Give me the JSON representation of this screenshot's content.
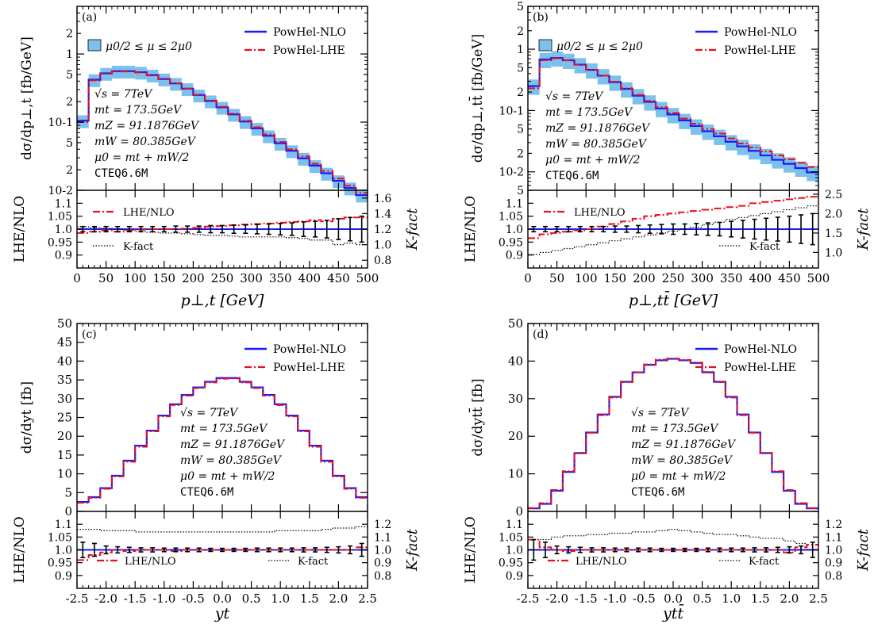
{
  "colors": {
    "nlo": "#1a1aff",
    "lhe": "#e8101a",
    "band": "#7cc0ec",
    "kfact": "#000000"
  },
  "info_text": [
    "√s = 7TeV",
    "mt = 173.5GeV",
    "mZ = 91.1876GeV",
    "mW = 80.385GeV",
    "μ0 = mt + mW/2",
    "CTEQ6.6M"
  ],
  "chart_data": [
    {
      "type": "line",
      "panel_label": "(a)",
      "xlabel": "p⊥,t [GeV]",
      "ylabel": "dσ/dp⊥,t [fb/GeV]",
      "log_y": true,
      "xlim": [
        0,
        500
      ],
      "ylim": [
        0.01,
        5
      ],
      "x_ticks": [
        "0",
        "50",
        "100",
        "150",
        "200",
        "250",
        "300",
        "350",
        "400",
        "450",
        "500"
      ],
      "y_ticks": [
        "10-2",
        "2",
        "5",
        "10-1",
        "2",
        "5",
        "1",
        "2"
      ],
      "legend": {
        "band": "μ0/2 ≤ μ ≤ 2μ0",
        "nlo": "PowHel-NLO",
        "lhe": "PowHel-LHE"
      },
      "bin_edges": [
        0,
        20,
        40,
        60,
        80,
        100,
        120,
        140,
        160,
        180,
        200,
        220,
        240,
        260,
        280,
        300,
        320,
        340,
        360,
        380,
        400,
        420,
        440,
        460,
        480,
        500
      ],
      "series": [
        {
          "name": "PowHel-NLO",
          "values": [
            0.105,
            0.42,
            0.52,
            0.56,
            0.56,
            0.54,
            0.49,
            0.43,
            0.37,
            0.31,
            0.25,
            0.205,
            0.165,
            0.13,
            0.102,
            0.081,
            0.063,
            0.049,
            0.038,
            0.0295,
            0.023,
            0.0178,
            0.0138,
            0.0108,
            0.0085
          ]
        },
        {
          "name": "PowHel-LHE",
          "values": [
            0.1,
            0.41,
            0.515,
            0.555,
            0.555,
            0.535,
            0.485,
            0.425,
            0.368,
            0.31,
            0.252,
            0.208,
            0.168,
            0.133,
            0.105,
            0.084,
            0.066,
            0.051,
            0.04,
            0.0315,
            0.0245,
            0.0192,
            0.0149,
            0.0117,
            0.0092
          ]
        }
      ],
      "band_rel": [
        0.78,
        1.2
      ],
      "ratio": {
        "ylabel": "LHE/NLO",
        "y2label": "K-fact",
        "ylim": [
          0.85,
          1.15
        ],
        "y_ticks": [
          "0.9",
          "0.95",
          "1.0",
          "1.05",
          "1.1"
        ],
        "y2lim": [
          0.7,
          1.7
        ],
        "y2_ticks": [
          "0.8",
          "1.0",
          "1.2",
          "1.4",
          "1.6"
        ],
        "legend": {
          "lhe": "LHE/NLO",
          "kfact": "K-fact"
        },
        "lhe_nlo": [
          0.985,
          0.99,
          0.995,
          0.99,
          0.995,
          0.998,
          1.0,
          1.0,
          1.0,
          1.002,
          1.005,
          1.01,
          1.012,
          1.015,
          1.018,
          1.02,
          1.022,
          1.025,
          1.028,
          1.03,
          1.035,
          1.03,
          1.04,
          1.045,
          1.045
        ],
        "errors": [
          0.01,
          0.01,
          0.01,
          0.01,
          0.01,
          0.01,
          0.01,
          0.01,
          0.012,
          0.012,
          0.012,
          0.014,
          0.014,
          0.016,
          0.016,
          0.018,
          0.02,
          0.022,
          0.024,
          0.028,
          0.03,
          0.034,
          0.04,
          0.045,
          0.05
        ],
        "k_fact": [
          1.23,
          1.22,
          1.21,
          1.2,
          1.19,
          1.17,
          1.16,
          1.15,
          1.15,
          1.14,
          1.13,
          1.12,
          1.12,
          1.11,
          1.1,
          1.1,
          1.1,
          1.1,
          1.09,
          1.08,
          1.06,
          1.06,
          1.0,
          1.02,
          1.0
        ]
      }
    },
    {
      "type": "line",
      "panel_label": "(b)",
      "xlabel": "p⊥,tt̄ [GeV]",
      "ylabel": "dσ/dp⊥,tt̄ [fb/GeV]",
      "log_y": true,
      "xlim": [
        0,
        500
      ],
      "ylim": [
        0.005,
        5
      ],
      "x_ticks": [
        "0",
        "50",
        "100",
        "150",
        "200",
        "250",
        "300",
        "350",
        "400",
        "450",
        "500"
      ],
      "y_ticks": [
        "5",
        "10-2",
        "2",
        "5",
        "10-1",
        "2",
        "5",
        "1",
        "2",
        "5"
      ],
      "legend": {
        "band": "μ0/2 ≤ μ ≤ 2μ0",
        "nlo": "PowHel-NLO",
        "lhe": "PowHel-LHE"
      },
      "bin_edges": [
        0,
        20,
        40,
        60,
        80,
        100,
        120,
        140,
        160,
        180,
        200,
        220,
        240,
        260,
        280,
        300,
        320,
        340,
        360,
        380,
        400,
        420,
        440,
        460,
        480,
        500
      ],
      "series": [
        {
          "name": "PowHel-NLO",
          "values": [
            0.25,
            0.68,
            0.72,
            0.66,
            0.56,
            0.46,
            0.37,
            0.29,
            0.225,
            0.175,
            0.138,
            0.108,
            0.086,
            0.069,
            0.056,
            0.046,
            0.038,
            0.031,
            0.026,
            0.022,
            0.0185,
            0.0157,
            0.0135,
            0.0115,
            0.0098
          ]
        },
        {
          "name": "PowHel-LHE",
          "values": [
            0.23,
            0.66,
            0.71,
            0.66,
            0.56,
            0.46,
            0.37,
            0.295,
            0.23,
            0.18,
            0.143,
            0.113,
            0.091,
            0.074,
            0.061,
            0.05,
            0.042,
            0.035,
            0.029,
            0.025,
            0.0215,
            0.0185,
            0.016,
            0.014,
            0.012
          ]
        }
      ],
      "band_rel": [
        0.72,
        1.28
      ],
      "ratio": {
        "ylabel": "LHE/NLO",
        "y2label": "K-fact",
        "ylim": [
          0.85,
          1.15
        ],
        "y_ticks": [
          "0.9",
          "0.95",
          "1.0",
          "1.05",
          "1.1"
        ],
        "y2lim": [
          0.6,
          2.6
        ],
        "y2_ticks": [
          "1.0",
          "1.5",
          "2.0",
          "2.5"
        ],
        "legend": {
          "lhe": "LHE/NLO",
          "kfact": "K-fact"
        },
        "lhe_nlo": [
          0.965,
          0.98,
          0.985,
          0.99,
          0.995,
          1.0,
          1.01,
          1.02,
          1.03,
          1.04,
          1.05,
          1.055,
          1.06,
          1.065,
          1.07,
          1.075,
          1.08,
          1.085,
          1.09,
          1.1,
          1.105,
          1.11,
          1.115,
          1.12,
          1.125
        ],
        "errors": [
          0.01,
          0.01,
          0.01,
          0.01,
          0.01,
          0.01,
          0.01,
          0.012,
          0.012,
          0.014,
          0.016,
          0.018,
          0.02,
          0.02,
          0.022,
          0.024,
          0.026,
          0.03,
          0.034,
          0.038,
          0.042,
          0.046,
          0.05,
          0.055,
          0.06
        ],
        "k_fact": [
          0.95,
          1.0,
          1.05,
          1.1,
          1.15,
          1.2,
          1.25,
          1.3,
          1.35,
          1.4,
          1.45,
          1.5,
          1.55,
          1.6,
          1.65,
          1.72,
          1.78,
          1.85,
          1.9,
          1.95,
          2.0,
          2.05,
          2.1,
          2.15,
          2.2
        ]
      }
    },
    {
      "type": "line",
      "panel_label": "(c)",
      "xlabel": "yt",
      "ylabel": "dσ/dyt [fb]",
      "log_y": false,
      "xlim": [
        -2.5,
        2.5
      ],
      "ylim": [
        0,
        50
      ],
      "x_ticks": [
        "-2.5",
        "-2.0",
        "-1.5",
        "-1.0",
        "-0.5",
        "0.0",
        "0.5",
        "1.0",
        "1.5",
        "2.0",
        "2.5"
      ],
      "y_ticks": [
        "0",
        "5",
        "10",
        "15",
        "20",
        "25",
        "30",
        "35",
        "40",
        "45",
        "50"
      ],
      "legend": {
        "nlo": "PowHel-NLO",
        "lhe": "PowHel-LHE"
      },
      "bin_edges": [
        -2.5,
        -2.3,
        -2.1,
        -1.9,
        -1.7,
        -1.5,
        -1.3,
        -1.1,
        -0.9,
        -0.7,
        -0.5,
        -0.3,
        -0.1,
        0.1,
        0.3,
        0.5,
        0.7,
        0.9,
        1.1,
        1.3,
        1.5,
        1.7,
        1.9,
        2.1,
        2.3,
        2.5
      ],
      "series": [
        {
          "name": "PowHel-NLO",
          "values": [
            2.5,
            3.8,
            6.2,
            9.5,
            13.5,
            17.5,
            21.5,
            25.5,
            28.5,
            31.0,
            33.0,
            34.5,
            35.5,
            35.5,
            34.5,
            33.0,
            31.0,
            28.5,
            25.5,
            21.5,
            17.5,
            13.5,
            9.5,
            6.2,
            3.8
          ]
        },
        {
          "name": "PowHel-LHE",
          "values": [
            2.3,
            3.6,
            6.0,
            9.3,
            13.2,
            17.2,
            21.3,
            25.3,
            28.3,
            30.8,
            32.8,
            34.3,
            35.3,
            35.4,
            34.3,
            32.8,
            30.8,
            28.3,
            25.3,
            21.3,
            17.2,
            13.2,
            9.3,
            6.0,
            3.6
          ]
        }
      ],
      "ratio": {
        "ylabel": "LHE/NLO",
        "y2label": "K-fact",
        "ylim": [
          0.85,
          1.15
        ],
        "y_ticks": [
          "0.9",
          "0.95",
          "1.0",
          "1.05",
          "1.1"
        ],
        "y2lim": [
          0.7,
          1.3
        ],
        "y2_ticks": [
          "0.8",
          "0.9",
          "1.0",
          "1.1",
          "1.2"
        ],
        "legend": {
          "lhe": "LHE/NLO",
          "kfact": "K-fact"
        },
        "lhe_nlo": [
          0.96,
          0.98,
          0.99,
          1.0,
          0.995,
          1.0,
          1.0,
          1.0,
          0.995,
          1.0,
          1.0,
          1.0,
          1.0,
          1.0,
          1.0,
          1.0,
          1.0,
          1.0,
          1.0,
          1.0,
          1.0,
          1.0,
          1.0,
          1.0,
          1.01
        ],
        "errors": [
          0.03,
          0.025,
          0.015,
          0.012,
          0.01,
          0.008,
          0.008,
          0.007,
          0.007,
          0.007,
          0.007,
          0.006,
          0.006,
          0.006,
          0.006,
          0.007,
          0.007,
          0.007,
          0.007,
          0.008,
          0.008,
          0.01,
          0.012,
          0.015,
          0.025
        ],
        "k_fact": [
          1.16,
          1.16,
          1.15,
          1.15,
          1.15,
          1.14,
          1.14,
          1.14,
          1.14,
          1.14,
          1.14,
          1.14,
          1.14,
          1.14,
          1.14,
          1.14,
          1.14,
          1.15,
          1.15,
          1.15,
          1.15,
          1.16,
          1.17,
          1.17,
          1.18
        ]
      }
    },
    {
      "type": "line",
      "panel_label": "(d)",
      "xlabel": "ytt̄",
      "ylabel": "dσ/dytt̄ [fb]",
      "log_y": false,
      "xlim": [
        -2.5,
        2.5
      ],
      "ylim": [
        0,
        50
      ],
      "x_ticks": [
        "-2.5",
        "-2.0",
        "-1.5",
        "-1.0",
        "-0.5",
        "0.0",
        "0.5",
        "1.0",
        "1.5",
        "2.0",
        "2.5"
      ],
      "y_ticks": [
        "0",
        "10",
        "20",
        "30",
        "40",
        "50"
      ],
      "legend": {
        "nlo": "PowHel-NLO",
        "lhe": "PowHel-LHE"
      },
      "bin_edges": [
        -2.5,
        -2.3,
        -2.1,
        -1.9,
        -1.7,
        -1.5,
        -1.3,
        -1.1,
        -0.9,
        -0.7,
        -0.5,
        -0.3,
        -0.1,
        0.1,
        0.3,
        0.5,
        0.7,
        0.9,
        1.1,
        1.3,
        1.5,
        1.7,
        1.9,
        2.1,
        2.3,
        2.5
      ],
      "series": [
        {
          "name": "PowHel-NLO",
          "values": [
            0.8,
            2.0,
            5.5,
            10.5,
            15.5,
            21.0,
            25.8,
            30.5,
            34.5,
            37.0,
            39.0,
            40.2,
            40.6,
            40.2,
            39.5,
            37.0,
            34.5,
            30.5,
            25.8,
            21.0,
            15.5,
            10.5,
            5.5,
            2.0,
            0.8
          ]
        },
        {
          "name": "PowHel-LHE",
          "values": [
            0.9,
            2.2,
            5.7,
            10.7,
            15.6,
            20.9,
            25.6,
            30.3,
            34.4,
            37.0,
            39.1,
            40.4,
            40.7,
            40.3,
            39.6,
            37.1,
            34.4,
            30.3,
            25.6,
            20.9,
            15.6,
            10.7,
            5.7,
            2.2,
            0.9
          ]
        }
      ],
      "ratio": {
        "ylabel": "LHE/NLO",
        "y2label": "K-fact",
        "ylim": [
          0.85,
          1.15
        ],
        "y_ticks": [
          "0.9",
          "0.95",
          "1.0",
          "1.05",
          "1.1"
        ],
        "y2lim": [
          0.7,
          1.3
        ],
        "y2_ticks": [
          "0.8",
          "0.9",
          "1.0",
          "1.1",
          "1.2"
        ],
        "legend": {
          "lhe": "LHE/NLO",
          "kfact": "K-fact"
        },
        "lhe_nlo": [
          1.04,
          1.01,
          1.0,
          0.995,
          1.0,
          1.0,
          1.0,
          1.0,
          1.0,
          1.0,
          1.0,
          1.0,
          1.0,
          1.0,
          1.0,
          1.0,
          1.0,
          1.0,
          1.0,
          1.0,
          1.0,
          1.0,
          0.99,
          1.01,
          1.02
        ],
        "errors": [
          0.04,
          0.03,
          0.015,
          0.012,
          0.01,
          0.008,
          0.008,
          0.007,
          0.007,
          0.007,
          0.007,
          0.006,
          0.006,
          0.006,
          0.006,
          0.007,
          0.007,
          0.007,
          0.007,
          0.008,
          0.008,
          0.01,
          0.012,
          0.015,
          0.03
        ],
        "k_fact": [
          1.0,
          1.08,
          1.1,
          1.11,
          1.11,
          1.12,
          1.12,
          1.13,
          1.13,
          1.14,
          1.14,
          1.15,
          1.16,
          1.15,
          1.14,
          1.13,
          1.12,
          1.12,
          1.11,
          1.1,
          1.09,
          1.09,
          1.07,
          1.05,
          1.0
        ]
      }
    }
  ]
}
